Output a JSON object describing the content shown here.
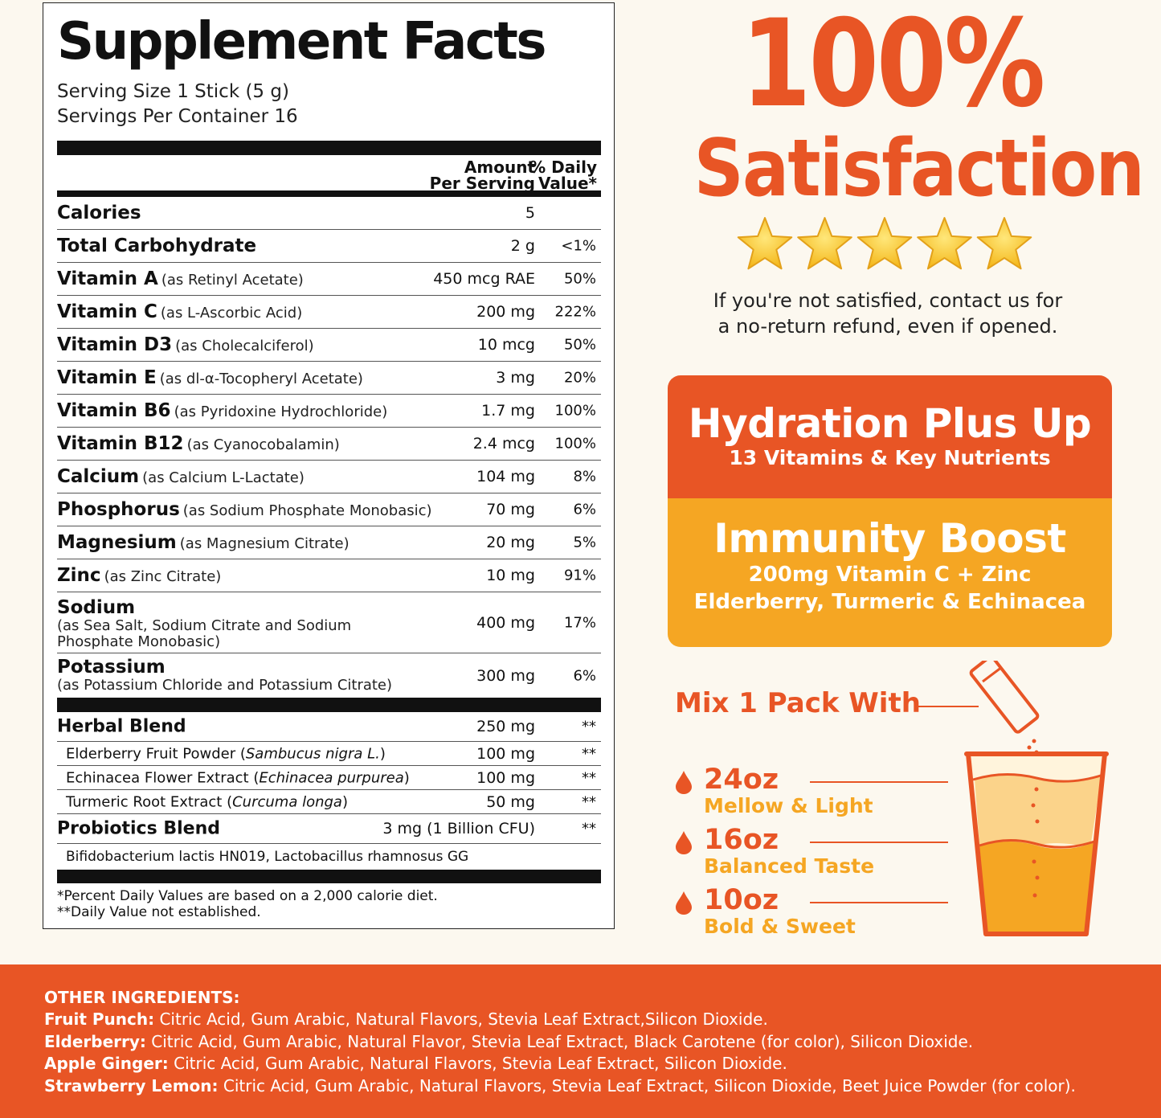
{
  "facts": {
    "title": "Supplement Facts",
    "serving_size": "Serving Size 1 Stick (5 g)",
    "servings_per": "Servings Per Container 16",
    "col_amount_1": "Amount",
    "col_amount_2": "Per Serving",
    "col_dv_1": "% Daily",
    "col_dv_2": "Value*",
    "rows": [
      {
        "name": "Calories",
        "sub": "",
        "amount": "5",
        "dv": ""
      },
      {
        "name": "Total Carbohydrate",
        "sub": "",
        "amount": "2 g",
        "dv": "<1%"
      },
      {
        "name": "Vitamin A",
        "sub": "(as Retinyl Acetate)",
        "amount": "450 mcg RAE",
        "dv": "50%"
      },
      {
        "name": "Vitamin C",
        "sub": "(as L-Ascorbic Acid)",
        "amount": "200 mg",
        "dv": "222%"
      },
      {
        "name": "Vitamin D3",
        "sub": "(as Cholecalciferol)",
        "amount": "10 mcg",
        "dv": "50%"
      },
      {
        "name": "Vitamin E",
        "sub": "(as dl-α-Tocopheryl Acetate)",
        "amount": "3 mg",
        "dv": "20%"
      },
      {
        "name": "Vitamin B6",
        "sub": "(as Pyridoxine Hydrochloride)",
        "amount": "1.7 mg",
        "dv": "100%"
      },
      {
        "name": "Vitamin B12",
        "sub": "(as Cyanocobalamin)",
        "amount": "2.4 mcg",
        "dv": "100%"
      },
      {
        "name": "Calcium",
        "sub": "(as Calcium L-Lactate)",
        "amount": "104 mg",
        "dv": "8%"
      },
      {
        "name": "Phosphorus",
        "sub": "(as Sodium Phosphate Monobasic)",
        "amount": "70 mg",
        "dv": "6%"
      },
      {
        "name": "Magnesium",
        "sub": "(as Magnesium Citrate)",
        "amount": "20 mg",
        "dv": "5%"
      },
      {
        "name": "Zinc",
        "sub": "(as Zinc Citrate)",
        "amount": "10 mg",
        "dv": "91%"
      }
    ],
    "sodium": {
      "name": "Sodium",
      "sub": "(as Sea Salt, Sodium Citrate and Sodium Phosphate Monobasic)",
      "amount": "400 mg",
      "dv": "17%"
    },
    "potassium": {
      "name": "Potassium",
      "sub": "(as Potassium Chloride and Potassium Citrate)",
      "amount": "300 mg",
      "dv": "6%"
    },
    "herbal": {
      "name": "Herbal Blend",
      "amount": "250 mg",
      "dv": "**"
    },
    "herbal_items": [
      {
        "name": "Elderberry Fruit Powder",
        "latin": "Sambucus nigra L.",
        "amount": "100 mg",
        "dv": "**"
      },
      {
        "name": "Echinacea Flower Extract",
        "latin": "Echinacea purpurea",
        "amount": "100 mg",
        "dv": "**"
      },
      {
        "name": "Turmeric Root Extract",
        "latin": "Curcuma longa",
        "amount": "50 mg",
        "dv": "**"
      }
    ],
    "probiotics": {
      "name": "Probiotics Blend",
      "amount": "3 mg (1 Billion CFU)",
      "dv": "**"
    },
    "probiotic_strains": "Bifidobacterium lactis HN019, Lactobacillus rhamnosus GG",
    "footnote_1": "*Percent Daily Values are based on a 2,000 calorie diet.",
    "footnote_2": "**Daily Value not established."
  },
  "promo": {
    "headline_1": "100%",
    "headline_2": "Satisfaction",
    "rating": 5,
    "guarantee_1": "If you're not satisfied, contact us for",
    "guarantee_2": "a no-return refund, even if opened.",
    "card_title_1": "Hydration Plus Up",
    "card_sub_1": "13 Vitamins & Key Nutrients",
    "card_title_2": "Immunity Boost",
    "card_sub_2a": "200mg Vitamin C + Zinc",
    "card_sub_2b": "Elderberry, Turmeric & Echinacea",
    "mix_label": "Mix 1 Pack With",
    "sizes": [
      {
        "oz": "24oz",
        "desc": "Mellow & Light"
      },
      {
        "oz": "16oz",
        "desc": "Balanced Taste"
      },
      {
        "oz": "10oz",
        "desc": "Bold & Sweet"
      }
    ]
  },
  "ingredients": {
    "heading": "OTHER INGREDIENTS:",
    "lines": [
      {
        "flavor": "Fruit Punch:",
        "text": " Citric Acid, Gum Arabic, Natural Flavors, Stevia Leaf Extract,Silicon Dioxide."
      },
      {
        "flavor": "Elderberry:",
        "text": " Citric Acid, Gum Arabic, Natural Flavor, Stevia Leaf Extract, Black Carotene (for color), Silicon Dioxide."
      },
      {
        "flavor": "Apple Ginger:",
        "text": " Citric Acid, Gum Arabic, Natural Flavors, Stevia Leaf Extract, Silicon Dioxide."
      },
      {
        "flavor": "Strawberry Lemon:",
        "text": " Citric Acid, Gum Arabic, Natural Flavors, Stevia Leaf Extract, Silicon Dioxide, Beet Juice Powder (for color)."
      }
    ]
  },
  "colors": {
    "orange": "#e85525",
    "amber": "#f5a623",
    "cream": "#fcf8ef"
  }
}
